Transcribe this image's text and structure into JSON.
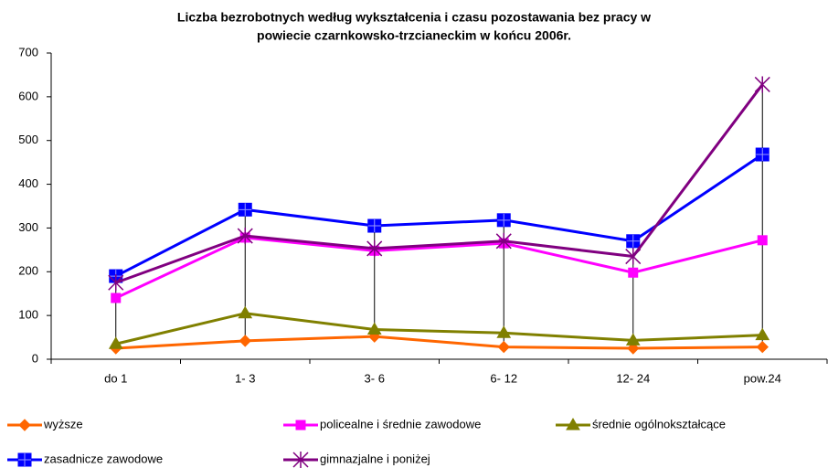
{
  "chart_data": {
    "type": "line",
    "title": [
      "Liczba bezrobotnych według wykształcenia i czasu pozostawania bez pracy w",
      "powiecie czarnkowsko-trzcianeckim w końcu 2006r."
    ],
    "categories": [
      "do 1",
      "1- 3",
      "3- 6",
      "6- 12",
      "12- 24",
      "pow.24"
    ],
    "ylim": [
      0,
      700
    ],
    "yticks": [
      0,
      100,
      200,
      300,
      400,
      500,
      600,
      700
    ],
    "high_low_lines": true,
    "series": [
      {
        "name": "wyższe",
        "color": "#ff6600",
        "marker": "diamond",
        "values": [
          25,
          42,
          52,
          28,
          25,
          28
        ]
      },
      {
        "name": "policealne i średnie zawodowe",
        "color": "#ff00ff",
        "marker": "square",
        "values": [
          140,
          278,
          248,
          265,
          198,
          272
        ]
      },
      {
        "name": "średnie ogólnokształcące",
        "color": "#808000",
        "marker": "triangle",
        "values": [
          35,
          105,
          68,
          60,
          43,
          55
        ]
      },
      {
        "name": "zasadnicze zawodowe",
        "color": "#0000ff",
        "marker": "square-plus",
        "values": [
          190,
          342,
          305,
          318,
          270,
          468
        ]
      },
      {
        "name": "gimnazjalne i poniżej",
        "color": "#800080",
        "marker": "star",
        "values": [
          175,
          282,
          253,
          270,
          235,
          628
        ]
      }
    ]
  }
}
